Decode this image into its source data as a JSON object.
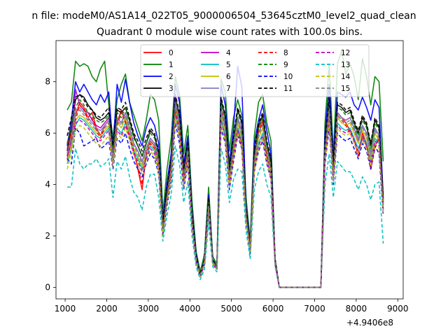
{
  "suptitle": "n file: modeM0/AS1A14_022T05_9000006504_53645cztM0_level2_quad_clean",
  "chart_data": {
    "type": "line",
    "title": "Quadrant 0 module wise count rates with 100.0s bins.",
    "xlabel": "",
    "ylabel": "",
    "x_offset_label": "+4.9406e8",
    "xlim": [
      780,
      9130
    ],
    "ylim": [
      -0.45,
      9.6
    ],
    "x_ticks": [
      1000,
      2000,
      3000,
      4000,
      5000,
      6000,
      7000,
      8000,
      9000
    ],
    "x_tick_labels": [
      "1000",
      "2000",
      "3000",
      "4000",
      "5000",
      "6000",
      "7000",
      "8000",
      "9000"
    ],
    "y_ticks": [
      0,
      2,
      4,
      6,
      8
    ],
    "y_tick_labels": [
      "0",
      "2",
      "4",
      "6",
      "8"
    ],
    "x": [
      1050,
      1150,
      1250,
      1350,
      1450,
      1550,
      1650,
      1750,
      1850,
      1950,
      2050,
      2150,
      2250,
      2350,
      2450,
      2550,
      2650,
      2750,
      2850,
      2950,
      3050,
      3150,
      3250,
      3350,
      3450,
      3550,
      3650,
      3750,
      3850,
      3950,
      4050,
      4150,
      4250,
      4350,
      4450,
      4550,
      4650,
      4750,
      4850,
      4950,
      5050,
      5150,
      5250,
      5350,
      5450,
      5550,
      5650,
      5750,
      5850,
      5950,
      6050,
      6150,
      7150,
      7250,
      7350,
      7450,
      7550,
      7650,
      7750,
      7850,
      7950,
      8050,
      8150,
      8250,
      8350,
      8450,
      8550,
      8650
    ],
    "legend": {
      "location": "top",
      "columns": 4
    },
    "series": [
      {
        "name": "0",
        "color": "#ff0000",
        "dash": "solid",
        "values": [
          5.1,
          5.9,
          6.7,
          7.2,
          7.0,
          6.6,
          6.8,
          6.2,
          5.9,
          6.3,
          6.5,
          5.2,
          6.4,
          6.9,
          6.5,
          6.0,
          5.3,
          4.6,
          3.8,
          5.2,
          5.7,
          5.5,
          5.0,
          2.2,
          3.6,
          4.6,
          7.0,
          6.3,
          4.2,
          5.2,
          2.7,
          1.1,
          0.5,
          1.0,
          3.3,
          1.0,
          0.8,
          7.0,
          6.3,
          4.2,
          5.4,
          6.2,
          5.5,
          2.8,
          1.5,
          4.9,
          6.2,
          6.5,
          5.2,
          4.6,
          1.0,
          0.0,
          0.0,
          5.3,
          7.0,
          4.4,
          6.8,
          6.6,
          6.4,
          6.1,
          5.8,
          5.1,
          6.0,
          5.6,
          4.6,
          5.5,
          5.9,
          3.3
        ]
      },
      {
        "name": "1",
        "color": "#008000",
        "dash": "solid",
        "values": [
          6.9,
          7.2,
          8.8,
          8.6,
          8.7,
          8.6,
          8.2,
          8.0,
          8.5,
          8.8,
          7.1,
          5.8,
          7.3,
          7.9,
          8.3,
          7.2,
          6.7,
          6.2,
          5.7,
          6.5,
          7.5,
          7.3,
          6.5,
          2.9,
          4.6,
          5.8,
          8.2,
          7.5,
          5.2,
          6.3,
          3.4,
          1.4,
          0.6,
          1.3,
          3.9,
          1.2,
          0.9,
          8.1,
          7.6,
          5.3,
          6.6,
          7.3,
          6.7,
          3.5,
          1.8,
          5.9,
          7.2,
          7.5,
          6.4,
          5.7,
          1.1,
          0.0,
          0.0,
          6.4,
          8.7,
          5.2,
          8.7,
          9.2,
          8.3,
          8.7,
          8.2,
          7.3,
          8.9,
          8.2,
          7.1,
          8.2,
          8.0,
          4.9
        ]
      },
      {
        "name": "2",
        "color": "#0000ff",
        "dash": "solid",
        "values": [
          5.5,
          6.5,
          8.0,
          7.6,
          7.9,
          7.6,
          7.3,
          7.1,
          7.5,
          7.2,
          7.6,
          5.4,
          7.9,
          7.2,
          8.1,
          7.2,
          6.4,
          5.9,
          5.5,
          6.2,
          6.6,
          6.3,
          5.6,
          2.6,
          4.1,
          5.2,
          7.9,
          7.2,
          4.8,
          5.9,
          3.0,
          1.3,
          0.5,
          1.1,
          3.6,
          1.1,
          0.8,
          7.9,
          7.1,
          4.8,
          6.2,
          8.6,
          7.8,
          3.2,
          1.7,
          5.6,
          6.5,
          7.1,
          6.1,
          5.2,
          1.1,
          0.0,
          0.0,
          6.0,
          7.9,
          5.0,
          7.6,
          7.5,
          7.4,
          7.6,
          7.1,
          6.9,
          7.4,
          7.0,
          6.5,
          7.3,
          7.0,
          3.5
        ]
      },
      {
        "name": "3",
        "color": "#000000",
        "dash": "solid",
        "values": [
          5.3,
          6.2,
          7.3,
          7.5,
          7.4,
          7.1,
          6.9,
          6.6,
          6.5,
          6.6,
          6.8,
          5.4,
          6.9,
          6.8,
          7.0,
          6.5,
          5.9,
          5.5,
          5.1,
          5.6,
          6.1,
          5.9,
          5.2,
          2.4,
          3.8,
          4.9,
          7.4,
          6.7,
          4.5,
          5.6,
          2.8,
          1.2,
          0.5,
          1.0,
          3.4,
          1.0,
          0.8,
          7.3,
          6.6,
          4.5,
          5.8,
          6.9,
          6.4,
          3.0,
          1.6,
          5.2,
          6.3,
          6.7,
          5.6,
          4.9,
          1.0,
          0.0,
          0.0,
          5.6,
          7.3,
          4.7,
          7.1,
          7.0,
          6.8,
          6.9,
          6.4,
          6.0,
          6.6,
          6.3,
          5.5,
          6.5,
          6.2,
          3.4
        ]
      },
      {
        "name": "4",
        "color": "#bf00bf",
        "dash": "solid",
        "values": [
          5.0,
          5.6,
          7.7,
          7.1,
          6.9,
          6.8,
          6.5,
          6.3,
          6.2,
          6.4,
          6.6,
          5.1,
          6.6,
          6.4,
          6.8,
          6.2,
          5.6,
          5.3,
          4.9,
          5.4,
          5.8,
          5.6,
          5.0,
          2.3,
          3.6,
          4.7,
          7.5,
          6.4,
          4.3,
          5.4,
          2.7,
          1.1,
          0.5,
          1.0,
          3.3,
          1.0,
          0.8,
          7.0,
          6.3,
          4.3,
          5.5,
          6.6,
          6.1,
          2.9,
          1.5,
          5.0,
          6.0,
          6.4,
          5.4,
          4.7,
          1.0,
          0.0,
          0.0,
          5.4,
          7.0,
          4.5,
          6.8,
          6.6,
          6.5,
          6.6,
          6.2,
          5.7,
          6.3,
          6.0,
          5.2,
          6.2,
          5.9,
          3.2
        ]
      },
      {
        "name": "5",
        "color": "#00bfbf",
        "dash": "solid",
        "values": [
          4.8,
          5.4,
          6.3,
          6.6,
          6.5,
          6.3,
          6.1,
          5.9,
          5.8,
          6.0,
          6.2,
          4.9,
          6.2,
          6.0,
          6.4,
          5.9,
          5.3,
          5.0,
          4.6,
          5.1,
          5.5,
          5.3,
          4.7,
          2.1,
          3.4,
          4.4,
          6.8,
          6.0,
          4.1,
          5.1,
          2.5,
          1.0,
          0.4,
          0.9,
          3.1,
          0.9,
          0.7,
          6.6,
          5.9,
          4.0,
          5.2,
          6.2,
          5.7,
          2.7,
          1.4,
          4.7,
          5.6,
          6.0,
          5.1,
          4.4,
          0.9,
          0.0,
          0.0,
          5.1,
          6.6,
          4.3,
          6.4,
          6.2,
          6.1,
          6.2,
          5.8,
          5.4,
          5.9,
          5.6,
          4.9,
          5.8,
          5.6,
          3.0
        ]
      },
      {
        "name": "6",
        "color": "#bfbf00",
        "dash": "solid",
        "values": [
          4.9,
          5.5,
          6.5,
          6.7,
          6.6,
          6.4,
          6.2,
          6.0,
          5.9,
          6.1,
          6.3,
          5.0,
          6.4,
          6.2,
          6.6,
          6.0,
          5.4,
          5.1,
          4.7,
          5.2,
          5.6,
          5.4,
          4.8,
          2.2,
          3.5,
          4.5,
          7.0,
          6.2,
          4.2,
          5.2,
          2.6,
          1.1,
          0.5,
          1.0,
          3.2,
          1.0,
          0.7,
          6.8,
          6.1,
          4.1,
          5.3,
          6.4,
          5.8,
          2.8,
          1.5,
          4.8,
          5.8,
          6.2,
          5.2,
          4.5,
          1.0,
          0.0,
          0.0,
          5.2,
          6.8,
          4.4,
          6.6,
          6.4,
          6.3,
          6.4,
          6.0,
          5.6,
          6.1,
          5.8,
          5.0,
          6.0,
          5.7,
          3.1
        ]
      },
      {
        "name": "7",
        "color": "#7f7fbf",
        "dash": "solid",
        "values": [
          5.2,
          5.8,
          6.9,
          7.0,
          6.8,
          6.6,
          6.4,
          6.2,
          6.1,
          6.3,
          6.5,
          5.1,
          6.6,
          6.4,
          6.8,
          6.2,
          5.6,
          5.3,
          4.9,
          5.4,
          5.8,
          5.6,
          5.0,
          2.3,
          3.6,
          4.6,
          7.2,
          6.4,
          4.3,
          5.4,
          2.7,
          1.1,
          0.5,
          1.0,
          3.3,
          1.0,
          0.8,
          7.0,
          6.3,
          4.3,
          5.5,
          6.6,
          6.0,
          2.9,
          1.5,
          5.0,
          6.0,
          6.4,
          5.4,
          4.7,
          1.0,
          0.0,
          0.0,
          5.4,
          7.0,
          4.5,
          6.8,
          6.6,
          6.5,
          6.6,
          6.2,
          5.8,
          6.3,
          6.0,
          5.2,
          6.2,
          5.9,
          3.2
        ]
      },
      {
        "name": "8",
        "color": "#ff0000",
        "dash": "dashed",
        "values": [
          5.4,
          6.0,
          6.5,
          7.1,
          6.9,
          6.5,
          6.6,
          6.1,
          5.8,
          6.2,
          6.4,
          5.2,
          6.3,
          6.8,
          6.4,
          5.9,
          5.3,
          4.7,
          4.0,
          5.2,
          5.6,
          5.4,
          4.9,
          2.2,
          3.6,
          4.6,
          6.9,
          6.2,
          4.2,
          5.2,
          2.7,
          1.1,
          0.5,
          1.0,
          3.3,
          1.0,
          0.8,
          6.9,
          6.2,
          4.2,
          5.3,
          6.1,
          5.4,
          2.8,
          1.5,
          4.8,
          6.1,
          6.4,
          5.1,
          4.6,
          1.0,
          0.0,
          0.0,
          5.2,
          6.9,
          4.4,
          6.7,
          6.5,
          6.3,
          6.0,
          5.7,
          5.1,
          5.9,
          5.5,
          4.6,
          5.4,
          5.8,
          3.3
        ]
      },
      {
        "name": "9",
        "color": "#008000",
        "dash": "dashed",
        "values": [
          5.6,
          6.3,
          7.0,
          7.3,
          7.1,
          6.8,
          6.7,
          6.5,
          6.4,
          6.5,
          6.7,
          5.3,
          6.8,
          6.6,
          7.0,
          6.4,
          5.8,
          5.5,
          5.1,
          5.6,
          6.0,
          5.8,
          5.1,
          2.4,
          3.7,
          4.8,
          7.3,
          6.6,
          4.4,
          5.5,
          2.8,
          1.2,
          0.5,
          1.0,
          3.4,
          1.0,
          0.8,
          7.2,
          6.5,
          4.4,
          5.7,
          6.8,
          6.3,
          3.0,
          1.6,
          5.1,
          6.2,
          6.6,
          5.5,
          4.8,
          1.0,
          0.0,
          0.0,
          5.5,
          7.2,
          4.6,
          7.0,
          6.9,
          6.7,
          6.8,
          6.3,
          5.9,
          6.5,
          6.2,
          5.4,
          6.4,
          6.1,
          3.4
        ]
      },
      {
        "name": "10",
        "color": "#0000ff",
        "dash": "dashed",
        "values": [
          5.0,
          4.8,
          6.2,
          6.0,
          5.5,
          5.6,
          5.7,
          5.8,
          5.4,
          5.5,
          5.7,
          4.6,
          5.8,
          5.6,
          6.0,
          5.4,
          4.9,
          4.6,
          4.3,
          4.8,
          5.2,
          5.0,
          4.4,
          2.0,
          3.2,
          4.1,
          6.4,
          5.6,
          3.8,
          4.8,
          2.4,
          1.0,
          0.4,
          0.9,
          2.9,
          0.9,
          0.7,
          6.2,
          5.6,
          3.8,
          4.9,
          5.9,
          5.4,
          2.6,
          1.3,
          4.5,
          5.3,
          5.7,
          4.8,
          4.2,
          0.9,
          0.0,
          0.0,
          4.8,
          6.2,
          4.0,
          6.0,
          5.8,
          5.7,
          5.8,
          5.4,
          5.0,
          5.6,
          5.3,
          4.6,
          5.5,
          5.2,
          2.8
        ]
      },
      {
        "name": "11",
        "color": "#000000",
        "dash": "dashed",
        "values": [
          5.9,
          6.6,
          7.4,
          7.5,
          7.3,
          7.0,
          6.9,
          6.7,
          6.6,
          6.8,
          7.0,
          5.5,
          7.0,
          6.9,
          7.2,
          6.6,
          6.0,
          5.7,
          5.3,
          5.8,
          6.2,
          6.0,
          5.3,
          2.5,
          3.9,
          5.0,
          7.5,
          6.8,
          4.6,
          5.7,
          2.9,
          1.2,
          0.5,
          1.1,
          3.5,
          1.1,
          0.8,
          7.4,
          6.7,
          4.6,
          5.9,
          7.0,
          6.5,
          3.1,
          1.6,
          5.3,
          6.4,
          6.8,
          5.7,
          5.0,
          1.1,
          0.0,
          0.0,
          5.7,
          7.4,
          4.8,
          7.2,
          7.1,
          6.9,
          7.0,
          6.5,
          6.1,
          6.7,
          6.4,
          5.6,
          6.6,
          6.3,
          3.5
        ]
      },
      {
        "name": "12",
        "color": "#bf00bf",
        "dash": "dashed",
        "values": [
          5.1,
          5.7,
          6.4,
          6.5,
          6.4,
          6.2,
          6.0,
          5.8,
          5.7,
          5.9,
          6.1,
          4.8,
          6.1,
          5.9,
          6.3,
          5.8,
          5.2,
          4.9,
          4.5,
          5.0,
          5.4,
          5.2,
          4.6,
          2.1,
          3.4,
          4.3,
          6.7,
          5.9,
          4.0,
          5.0,
          2.5,
          1.0,
          0.4,
          0.9,
          3.1,
          0.9,
          0.7,
          6.5,
          5.8,
          4.0,
          5.1,
          6.1,
          5.6,
          2.7,
          1.4,
          4.6,
          5.5,
          5.9,
          5.0,
          4.3,
          0.9,
          0.0,
          0.0,
          5.0,
          6.5,
          4.2,
          6.3,
          6.1,
          6.0,
          6.1,
          5.7,
          5.3,
          5.8,
          5.5,
          4.8,
          5.7,
          5.5,
          3.0
        ]
      },
      {
        "name": "13",
        "color": "#00bfbf",
        "dash": "dashed",
        "values": [
          3.9,
          3.9,
          5.4,
          4.8,
          4.6,
          4.8,
          4.8,
          5.0,
          4.7,
          4.8,
          5.0,
          3.5,
          4.9,
          4.6,
          5.1,
          4.3,
          3.7,
          3.5,
          3.0,
          3.9,
          4.4,
          4.4,
          3.5,
          1.8,
          2.8,
          3.6,
          5.5,
          4.8,
          3.3,
          4.1,
          2.0,
          0.8,
          0.3,
          0.7,
          2.5,
          0.8,
          0.6,
          5.4,
          4.8,
          3.3,
          4.2,
          4.6,
          4.5,
          2.2,
          1.1,
          3.8,
          4.5,
          4.8,
          4.0,
          3.5,
          0.8,
          0.0,
          0.0,
          4.0,
          5.2,
          3.5,
          4.9,
          4.7,
          4.5,
          4.5,
          4.2,
          3.8,
          4.3,
          4.0,
          3.4,
          4.0,
          4.1,
          1.7
        ]
      },
      {
        "name": "14",
        "color": "#bfbf00",
        "dash": "dashed",
        "values": [
          4.6,
          5.2,
          6.1,
          6.3,
          6.2,
          6.0,
          5.8,
          5.6,
          5.5,
          5.7,
          5.9,
          4.7,
          6.0,
          5.8,
          6.2,
          5.7,
          5.1,
          4.8,
          4.4,
          4.9,
          5.3,
          5.1,
          4.5,
          2.0,
          3.3,
          4.2,
          6.6,
          5.8,
          3.9,
          4.9,
          2.4,
          1.0,
          0.4,
          0.9,
          3.0,
          0.9,
          0.7,
          6.4,
          5.7,
          3.9,
          5.0,
          6.0,
          5.5,
          2.6,
          1.4,
          4.5,
          5.4,
          5.8,
          4.9,
          4.2,
          0.9,
          0.0,
          0.0,
          4.9,
          6.4,
          4.1,
          6.2,
          6.0,
          5.9,
          6.0,
          5.6,
          5.2,
          5.7,
          5.4,
          4.7,
          5.6,
          5.4,
          2.9
        ]
      },
      {
        "name": "15",
        "color": "#7f7f7f",
        "dash": "dashed",
        "values": [
          5.2,
          5.8,
          6.7,
          6.9,
          6.7,
          6.5,
          6.3,
          6.1,
          6.0,
          6.2,
          6.4,
          5.0,
          6.5,
          6.3,
          6.7,
          6.1,
          5.5,
          5.2,
          4.8,
          5.3,
          5.7,
          5.5,
          4.9,
          2.2,
          3.5,
          4.6,
          7.1,
          6.3,
          4.2,
          5.3,
          2.6,
          1.1,
          0.5,
          1.0,
          3.2,
          1.0,
          0.7,
          6.9,
          6.2,
          4.2,
          5.4,
          6.5,
          5.9,
          2.8,
          1.5,
          4.9,
          5.9,
          6.3,
          5.3,
          4.6,
          1.0,
          0.0,
          0.0,
          5.3,
          6.9,
          4.4,
          6.7,
          6.5,
          6.4,
          6.5,
          6.1,
          5.7,
          6.2,
          5.9,
          5.1,
          6.1,
          5.8,
          3.1
        ]
      }
    ]
  }
}
